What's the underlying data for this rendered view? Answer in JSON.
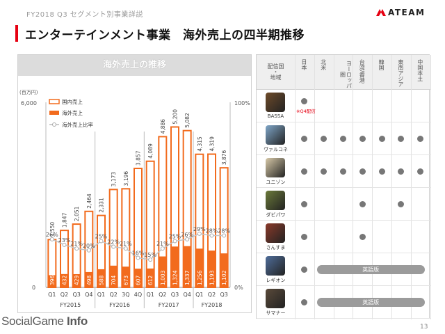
{
  "header": {
    "subtitle": "FY2018 Q3 セグメント別事業詳説",
    "title": "エンターテインメント事業　海外売上の四半期推移"
  },
  "logo": {
    "text": "ATEAM"
  },
  "chart_panel": {
    "heading": "海外売上の推移"
  },
  "chart_data": {
    "type": "bar",
    "title": "",
    "unit_label": "(百万円)",
    "y_left_ticks": [
      "6,000",
      "0"
    ],
    "y_right_ticks": [
      "100%",
      "0%"
    ],
    "ylim": [
      0,
      6000
    ],
    "y2lim": [
      0,
      100
    ],
    "categories": [
      "Q1",
      "Q2",
      "Q3",
      "Q4",
      "Q1",
      "Q2",
      "3Q",
      "4Q",
      "Q1",
      "Q2",
      "Q3",
      "Q4",
      "Q1",
      "Q2",
      "Q3"
    ],
    "fiscal_years": [
      {
        "label": "FY2015",
        "count": 4
      },
      {
        "label": "FY2016",
        "count": 4
      },
      {
        "label": "FY2017",
        "count": 4
      },
      {
        "label": "FY2018",
        "count": 3
      }
    ],
    "legend_placement": "top-left",
    "series": [
      {
        "name": "国内売上",
        "kind": "bar-outline",
        "color": "#f26b1d",
        "values": [
          1550,
          1847,
          2051,
          2464,
          2331,
          3173,
          3196,
          3857,
          4089,
          4886,
          5200,
          5082,
          4315,
          4319,
          3876
        ]
      },
      {
        "name": "海外売上",
        "kind": "bar-filled",
        "color": "#f26b1d",
        "values": [
          396,
          432,
          429,
          498,
          588,
          704,
          673,
          607,
          612,
          1003,
          1324,
          1337,
          1256,
          1193,
          1102
        ]
      },
      {
        "name": "海外売上比率",
        "kind": "line",
        "color": "#b8b8b8",
        "values": [
          26,
          23,
          21,
          20,
          25,
          22,
          21,
          16,
          15,
          21,
          25,
          26,
          29,
          28,
          28
        ],
        "labels": [
          "26%",
          "23%",
          "21%",
          "20%",
          "25%",
          "22%",
          "21%",
          "16%",
          "15%",
          "21%",
          "25%",
          "26%",
          "29%",
          "28%",
          "28%"
        ]
      }
    ],
    "total_labels": [
      "1,550",
      "1,847",
      "2,051",
      "2,464",
      "2,331",
      "3,173",
      "3,196",
      "3,857",
      "4,089",
      "4,886",
      "5,200",
      "5,082",
      "4,315",
      "4,319",
      "3,876"
    ],
    "overseas_labels": [
      "396",
      "432",
      "429",
      "498",
      "588",
      "704",
      "673",
      "607",
      "612",
      "1,003",
      "1,324",
      "1,337",
      "1,256",
      "1,193",
      "1,102"
    ]
  },
  "table": {
    "first_header": [
      "配信国",
      "・",
      "地域"
    ],
    "regions": [
      "日本",
      "北米",
      "ヨーロッパ圏",
      "台湾/香港",
      "韓国",
      "東南アジア",
      "中国本土"
    ],
    "english_label": "英語版",
    "games": [
      {
        "name": "BASSA",
        "icon": "bassa-game-icon",
        "dots": [
          true,
          false,
          false,
          false,
          false,
          false,
          false
        ],
        "note": "※Q4配信",
        "english_span": false
      },
      {
        "name": "ヴァルコネ",
        "icon": "valkone-game-icon",
        "dots": [
          true,
          true,
          true,
          true,
          true,
          true,
          true
        ],
        "note": "",
        "english_span": false
      },
      {
        "name": "ユニゾン",
        "icon": "unison-game-icon",
        "dots": [
          true,
          true,
          true,
          true,
          true,
          true,
          true
        ],
        "note": "",
        "english_span": false
      },
      {
        "name": "ダビパワ",
        "icon": "dabipawa-game-icon",
        "dots": [
          true,
          false,
          false,
          true,
          false,
          true,
          false
        ],
        "note": "",
        "english_span": false
      },
      {
        "name": "さんすま",
        "icon": "sansuma-game-icon",
        "dots": [
          true,
          false,
          false,
          true,
          false,
          false,
          false
        ],
        "note": "",
        "english_span": false
      },
      {
        "name": "レギオン",
        "icon": "legion-game-icon",
        "dots": [
          true,
          false,
          false,
          false,
          false,
          false,
          false
        ],
        "note": "",
        "english_span": true
      },
      {
        "name": "サマナー",
        "icon": "summoner-game-icon",
        "dots": [
          true,
          false,
          false,
          false,
          false,
          false,
          false
        ],
        "note": "",
        "english_span": true
      }
    ]
  },
  "footer": {
    "watermark_a": "Social",
    "watermark_b": "Game",
    "watermark_c": "Info",
    "page_number": "13"
  }
}
